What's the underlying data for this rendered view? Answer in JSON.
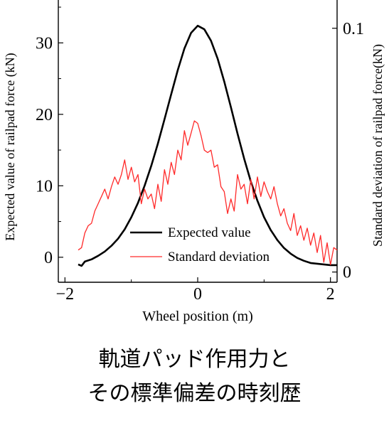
{
  "chart_data": {
    "type": "line",
    "xlabel": "Wheel position (m)",
    "ylabel_left": "Expected value of railpad force (kN)",
    "ylabel_right": "Standard deviation of railpad force(kN)",
    "xlim": [
      -2.1,
      2.1
    ],
    "ylim_left": [
      -3.5,
      36
    ],
    "ylim_right": [
      -0.0042,
      0.1116
    ],
    "x_ticks": [
      "-2",
      "0",
      "2"
    ],
    "y_ticks_left": [
      "0",
      "10",
      "20",
      "30"
    ],
    "y_ticks_right": [
      "0",
      "0.1"
    ],
    "grid": false,
    "legend_position": "lower-center",
    "series": [
      {
        "name": "Expected value",
        "axis": "left",
        "color": "#000000",
        "x": [
          -1.8,
          -1.75,
          -1.7,
          -1.6,
          -1.5,
          -1.4,
          -1.3,
          -1.2,
          -1.1,
          -1.0,
          -0.9,
          -0.8,
          -0.7,
          -0.6,
          -0.5,
          -0.4,
          -0.3,
          -0.2,
          -0.1,
          0.0,
          0.1,
          0.2,
          0.3,
          0.4,
          0.5,
          0.6,
          0.7,
          0.8,
          0.9,
          1.0,
          1.1,
          1.2,
          1.3,
          1.4,
          1.5,
          1.6,
          1.7,
          1.8,
          1.9,
          2.0,
          2.1
        ],
        "values": [
          -1.0,
          -1.2,
          -0.6,
          -0.3,
          0.2,
          0.8,
          1.6,
          2.6,
          3.9,
          5.6,
          7.6,
          10.0,
          12.8,
          15.9,
          19.3,
          22.8,
          26.2,
          29.2,
          31.4,
          32.4,
          31.9,
          30.3,
          27.8,
          24.6,
          21.0,
          17.3,
          13.8,
          10.6,
          7.9,
          5.6,
          3.8,
          2.4,
          1.3,
          0.5,
          -0.1,
          -0.5,
          -0.8,
          -0.9,
          -1.0,
          -1.1,
          -1.1
        ]
      },
      {
        "name": "Standard deviation",
        "axis": "right",
        "color": "#ff2a2a",
        "x": [
          -1.8,
          -1.75,
          -1.7,
          -1.65,
          -1.6,
          -1.55,
          -1.5,
          -1.45,
          -1.4,
          -1.35,
          -1.3,
          -1.25,
          -1.2,
          -1.15,
          -1.1,
          -1.05,
          -1.0,
          -0.95,
          -0.9,
          -0.85,
          -0.8,
          -0.75,
          -0.7,
          -0.65,
          -0.6,
          -0.55,
          -0.5,
          -0.45,
          -0.4,
          -0.35,
          -0.3,
          -0.25,
          -0.2,
          -0.15,
          -0.1,
          -0.05,
          0.0,
          0.05,
          0.1,
          0.15,
          0.2,
          0.25,
          0.3,
          0.35,
          0.4,
          0.45,
          0.5,
          0.55,
          0.6,
          0.65,
          0.7,
          0.75,
          0.8,
          0.85,
          0.9,
          0.95,
          1.0,
          1.05,
          1.1,
          1.15,
          1.2,
          1.25,
          1.3,
          1.35,
          1.4,
          1.45,
          1.5,
          1.55,
          1.6,
          1.65,
          1.7,
          1.75,
          1.8,
          1.85,
          1.9,
          1.95,
          2.0,
          2.05,
          2.1
        ],
        "values": [
          0.009,
          0.01,
          0.016,
          0.019,
          0.02,
          0.025,
          0.028,
          0.031,
          0.034,
          0.03,
          0.035,
          0.039,
          0.036,
          0.04,
          0.046,
          0.038,
          0.043,
          0.037,
          0.04,
          0.028,
          0.034,
          0.03,
          0.032,
          0.026,
          0.036,
          0.029,
          0.042,
          0.036,
          0.045,
          0.04,
          0.05,
          0.046,
          0.058,
          0.052,
          0.057,
          0.062,
          0.061,
          0.056,
          0.05,
          0.049,
          0.05,
          0.043,
          0.044,
          0.035,
          0.033,
          0.024,
          0.03,
          0.025,
          0.04,
          0.034,
          0.036,
          0.028,
          0.038,
          0.03,
          0.039,
          0.031,
          0.037,
          0.033,
          0.03,
          0.035,
          0.028,
          0.023,
          0.026,
          0.02,
          0.017,
          0.024,
          0.015,
          0.019,
          0.013,
          0.018,
          0.011,
          0.016,
          0.008,
          0.015,
          0.004,
          0.012,
          0.003,
          0.01,
          0.009
        ]
      }
    ]
  },
  "caption": {
    "line1": "軌道パッド作用力と",
    "line2": "その標準偏差の時刻歴"
  }
}
